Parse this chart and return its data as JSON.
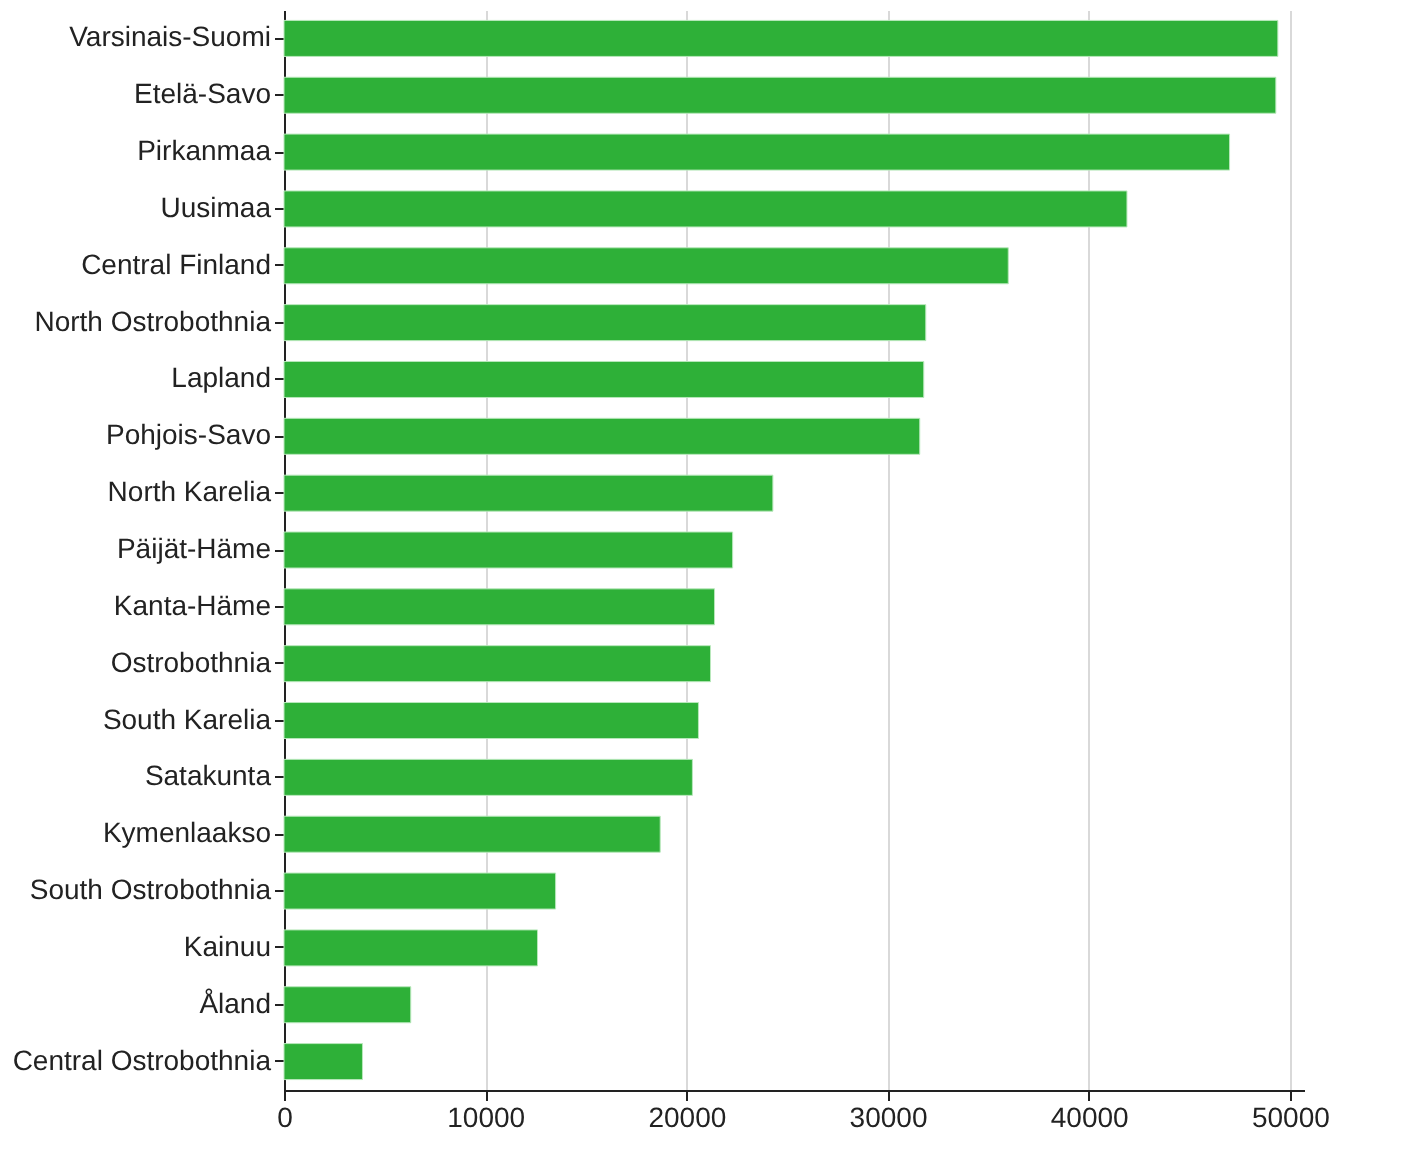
{
  "chart_data": {
    "type": "bar",
    "orientation": "horizontal",
    "categories": [
      "Varsinais-Suomi",
      "Etelä-Savo",
      "Pirkanmaa",
      "Uusimaa",
      "Central Finland",
      "North Ostrobothnia",
      "Lapland",
      "Pohjois-Savo",
      "North Karelia",
      "Päijät-Häme",
      "Kanta-Häme",
      "Ostrobothnia",
      "South Karelia",
      "Satakunta",
      "Kymenlaakso",
      "South Ostrobothnia",
      "Kainuu",
      "Åland",
      "Central Ostrobothnia"
    ],
    "values": [
      49400,
      49300,
      47000,
      41900,
      36000,
      31900,
      31800,
      31600,
      24300,
      22300,
      21400,
      21200,
      20600,
      20300,
      18700,
      13500,
      12600,
      6300,
      3900
    ],
    "color": "#2eb038",
    "xlim": [
      0,
      50700
    ],
    "xticks": [
      0,
      10000,
      20000,
      30000,
      40000,
      50000
    ],
    "grid": "x"
  }
}
